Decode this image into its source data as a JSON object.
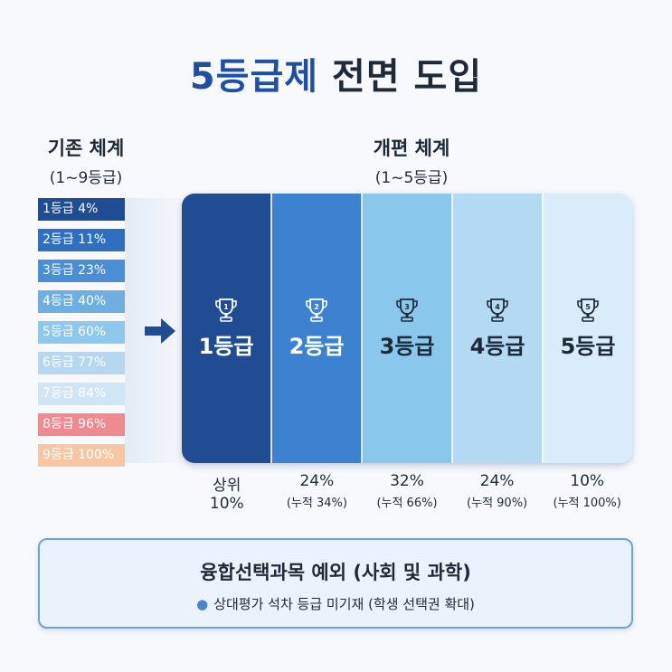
{
  "title": {
    "accent": "5등급제",
    "rest": "전면 도입"
  },
  "old_system": {
    "heading": "기존 체계",
    "subheading": "(1~9등급)",
    "items": [
      {
        "label": "1등급 4%",
        "bg": "#1f4c93",
        "fg": "#ffffff"
      },
      {
        "label": "2등급 11%",
        "bg": "#2f6fbf",
        "fg": "#ffffff"
      },
      {
        "label": "3등급 23%",
        "bg": "#4a8ed6",
        "fg": "#ffffff"
      },
      {
        "label": "4등급 40%",
        "bg": "#6eaee3",
        "fg": "#ffffff"
      },
      {
        "label": "5등급 60%",
        "bg": "#8ec8ec",
        "fg": "#ffffff"
      },
      {
        "label": "6등급 77%",
        "bg": "#b5d8f0",
        "fg": "#ffffff"
      },
      {
        "label": "7등급 84%",
        "bg": "#cfe6f6",
        "fg": "#ffffff"
      },
      {
        "label": "8등급 96%",
        "bg": "#ef8a8f",
        "fg": "#ffffff"
      },
      {
        "label": "9등급 100%",
        "bg": "#f7c7a3",
        "fg": "#ffffff"
      }
    ]
  },
  "new_system": {
    "heading": "개편 체계",
    "subheading": "(1~5등급)",
    "grades": [
      {
        "num": "1",
        "label": "1등급",
        "bg": "#1f4c93",
        "fg": "#ffffff",
        "main": "상위",
        "sub": "10%"
      },
      {
        "num": "2",
        "label": "2등급",
        "bg": "#3d82d0",
        "fg": "#ffffff",
        "main": "24%",
        "sub": "(누적 34%)"
      },
      {
        "num": "3",
        "label": "3등급",
        "bg": "#89c8ec",
        "fg": "#1e2a3a",
        "main": "32%",
        "sub": "(누적 66%)"
      },
      {
        "num": "4",
        "label": "4등급",
        "bg": "#b3d9f3",
        "fg": "#1e2a3a",
        "main": "24%",
        "sub": "(누적 90%)"
      },
      {
        "num": "5",
        "label": "5등급",
        "bg": "#d8ecfa",
        "fg": "#1e2a3a",
        "main": "10%",
        "sub": "(누적 100%)"
      }
    ]
  },
  "note": {
    "title": "융합선택과목 예외 (사회 및 과학)",
    "bullet": "상대평가 석차 등급 미기재 (학생 선택권 확대)"
  },
  "icons": {
    "arrow": "right-arrow-icon",
    "trophy": "trophy-icon",
    "bullet": "bullet-dot-icon"
  }
}
